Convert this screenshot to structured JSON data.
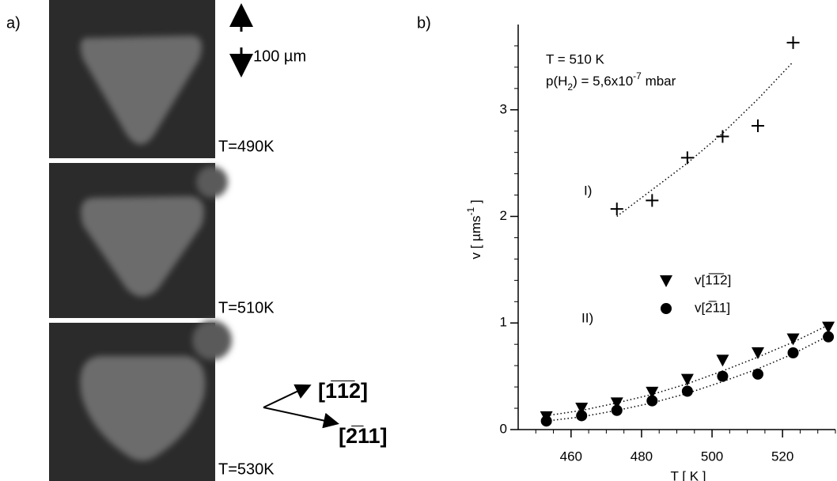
{
  "panel_a": {
    "label": "a)",
    "temps": [
      "T=490K",
      "T=510K",
      "T=530K"
    ],
    "scale": "100 µm",
    "dir1": "[1̅1̅2]",
    "dir2": "[2̅11]"
  },
  "chart_data": {
    "type": "scatter",
    "panel_label": "b)",
    "xlabel": "T   [ K ]",
    "ylabel_parts": [
      "v  [ µms",
      "-1",
      " ]"
    ],
    "condition_T": "T = 510 K",
    "condition_p_parts": [
      "p(H",
      "2",
      ") = 5,6x10",
      "-7",
      " mbar"
    ],
    "annotations": [
      "I)",
      "II)"
    ],
    "xlim": [
      445,
      535
    ],
    "ylim": [
      0,
      3.8
    ],
    "xticks": [
      460,
      480,
      500,
      520
    ],
    "yticks": [
      0,
      1,
      2,
      3
    ],
    "xminorticks": [
      450,
      455,
      465,
      470,
      475,
      485,
      490,
      495,
      505,
      510,
      515,
      525,
      530,
      535
    ],
    "yminorticks": [
      0.2,
      0.4,
      0.6,
      0.8,
      1.2,
      1.4,
      1.6,
      1.8,
      2.2,
      2.4,
      2.6,
      2.8,
      3.2,
      3.4,
      3.6
    ],
    "series": [
      {
        "marker": "plus",
        "color": "#000000",
        "x": [
          473,
          483,
          493,
          503,
          513,
          523
        ],
        "values": [
          2.07,
          2.15,
          2.55,
          2.75,
          2.85,
          3.63
        ],
        "fit": [
          2.0,
          2.25,
          2.5,
          2.78,
          3.1,
          3.45
        ]
      },
      {
        "name": "v[1̅1̅2]",
        "marker": "triangle-down",
        "color": "#000000",
        "x": [
          453,
          463,
          473,
          483,
          493,
          503,
          513,
          523,
          533
        ],
        "values": [
          0.12,
          0.2,
          0.25,
          0.35,
          0.47,
          0.65,
          0.72,
          0.85,
          0.96
        ],
        "fit": [
          0.13,
          0.18,
          0.25,
          0.33,
          0.43,
          0.55,
          0.68,
          0.82,
          0.98
        ]
      },
      {
        "name": "v[2̅11]",
        "marker": "circle",
        "color": "#000000",
        "x": [
          453,
          463,
          473,
          483,
          493,
          503,
          513,
          523,
          533
        ],
        "values": [
          0.08,
          0.13,
          0.18,
          0.27,
          0.36,
          0.5,
          0.52,
          0.72,
          0.87
        ],
        "fit": [
          0.08,
          0.12,
          0.18,
          0.25,
          0.34,
          0.45,
          0.57,
          0.71,
          0.88
        ]
      }
    ]
  }
}
